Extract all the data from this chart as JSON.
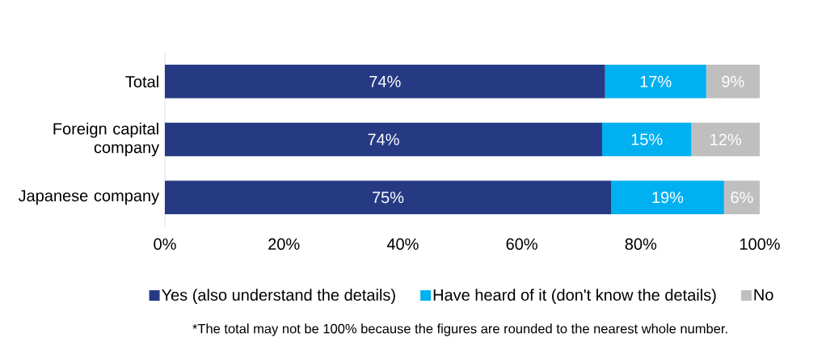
{
  "chart_data": {
    "type": "bar",
    "orientation": "horizontal",
    "stacked": true,
    "categories": [
      "Total",
      "Foreign capital company",
      "Japanese company"
    ],
    "series": [
      {
        "name": "Yes (also understand the details)",
        "color": "#263a84",
        "values": [
          74,
          73.5,
          75
        ],
        "value_labels": [
          "74%",
          "74%",
          "75%"
        ]
      },
      {
        "name": "Have heard of it (don't know the details)",
        "color": "#00b0f0",
        "values": [
          17,
          15,
          19
        ],
        "value_labels": [
          "17%",
          "15%",
          "19%"
        ]
      },
      {
        "name": "No",
        "color": "#bfbfbf",
        "values": [
          9,
          11.5,
          6
        ],
        "value_labels": [
          "9%",
          "12%",
          "6%"
        ]
      }
    ],
    "xlim": [
      0,
      100
    ],
    "xticks": [
      {
        "value": 0,
        "label": "0%"
      },
      {
        "value": 20,
        "label": "20%"
      },
      {
        "value": 40,
        "label": "40%"
      },
      {
        "value": 60,
        "label": "60%"
      },
      {
        "value": 80,
        "label": "80%"
      },
      {
        "value": 100,
        "label": "100%"
      }
    ],
    "legend": "bottom",
    "annotations": [
      "*The total may not be 100% because the figures are rounded to the nearest whole number."
    ]
  }
}
